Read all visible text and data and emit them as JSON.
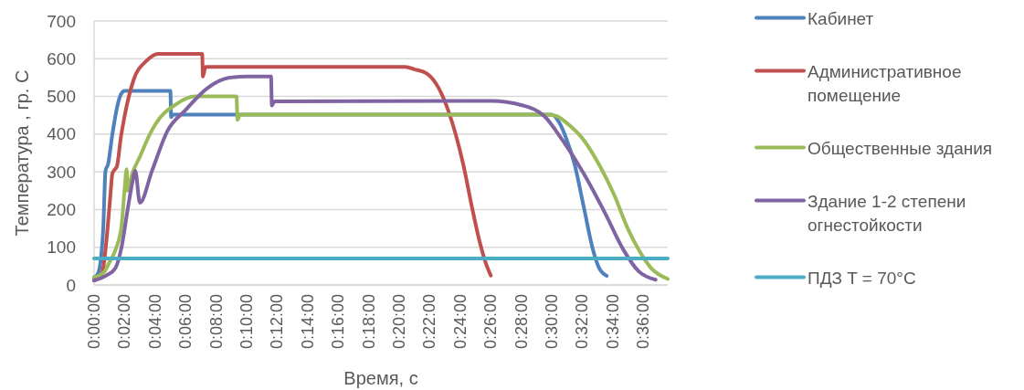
{
  "chart_data": {
    "type": "line",
    "xlabel": "Время, с",
    "ylabel": "Температура , гр. С",
    "xlim": [
      0,
      2256
    ],
    "xticks": [
      {
        "value": 0,
        "label": "0:00:00"
      },
      {
        "value": 120,
        "label": "0:02:00"
      },
      {
        "value": 240,
        "label": "0:04:00"
      },
      {
        "value": 360,
        "label": "0:06:00"
      },
      {
        "value": 480,
        "label": "0:08:00"
      },
      {
        "value": 600,
        "label": "0:10:00"
      },
      {
        "value": 720,
        "label": "0:12:00"
      },
      {
        "value": 840,
        "label": "0:14:00"
      },
      {
        "value": 960,
        "label": "0:16:00"
      },
      {
        "value": 1080,
        "label": "0:18:00"
      },
      {
        "value": 1200,
        "label": "0:20:00"
      },
      {
        "value": 1320,
        "label": "0:22:00"
      },
      {
        "value": 1440,
        "label": "0:24:00"
      },
      {
        "value": 1560,
        "label": "0:26:00"
      },
      {
        "value": 1680,
        "label": "0:28:00"
      },
      {
        "value": 1800,
        "label": "0:30:00"
      },
      {
        "value": 1920,
        "label": "0:32:00"
      },
      {
        "value": 2040,
        "label": "0:34:00"
      },
      {
        "value": 2160,
        "label": "0:36:00"
      }
    ],
    "ylim": [
      0,
      700
    ],
    "yticks": [
      0,
      100,
      200,
      300,
      400,
      500,
      600,
      700
    ],
    "grid": "y",
    "legend": "right",
    "series": [
      {
        "name": "Кабинет",
        "color": "#4f81bd",
        "x": [
          0,
          15,
          25,
          36,
          45,
          55,
          72,
          90,
          105,
          120,
          300,
          303,
          310,
          1800,
          1830,
          1855,
          1890,
          1926,
          1962,
          1986,
          2016
        ],
        "values": [
          20,
          30,
          60,
          150,
          303,
          320,
          400,
          470,
          505,
          515,
          515,
          445,
          452,
          452,
          430,
          392,
          319,
          206,
          93,
          45,
          24
        ]
      },
      {
        "name": "Административное помещение",
        "color": "#c0504d",
        "x": [
          0,
          24,
          36,
          54,
          66,
          72,
          80,
          90,
          105,
          120,
          156,
          204,
          252,
          425,
          428,
          438,
          1224,
          1260,
          1308,
          1356,
          1392,
          1452,
          1488,
          1518,
          1542,
          1560
        ],
        "values": [
          12,
          20,
          45,
          157,
          254,
          296,
          305,
          315,
          390,
          448,
          545,
          593,
          613,
          613,
          553,
          578,
          578,
          572,
          561,
          521,
          464,
          319,
          200,
          110,
          55,
          25
        ]
      },
      {
        "name": "Общественные здания",
        "color": "#9bbb59",
        "x": [
          0,
          40,
          60,
          84,
          108,
          120,
          128,
          132,
          150,
          180,
          216,
          240,
          324,
          396,
          560,
          564,
          574,
          1782,
          1820,
          1854,
          1926,
          1986,
          2046,
          2094,
          2142,
          2190,
          2256
        ],
        "values": [
          20,
          35,
          60,
          93,
          157,
          254,
          307,
          250,
          295,
          340,
          395,
          425,
          480,
          500,
          500,
          438,
          452,
          452,
          448,
          432,
          384,
          319,
          238,
          157,
          93,
          45,
          16
        ]
      },
      {
        "name": "Здание 1-2 степени огнестойкости",
        "color": "#8064a2",
        "x": [
          0,
          48,
          84,
          108,
          132,
          150,
          162,
          180,
          228,
          288,
          360,
          444,
          528,
          600,
          696,
          699,
          710,
          1560,
          1686,
          1770,
          1842,
          1926,
          2010,
          2082,
          2142,
          2208
        ],
        "values": [
          12,
          25,
          45,
          100,
          200,
          270,
          303,
          218,
          303,
          408,
          464,
          521,
          549,
          553,
          553,
          476,
          487,
          488,
          476,
          448,
          384,
          295,
          190,
          93,
          36,
          14
        ]
      },
      {
        "name": "ПДЗ T = 70°C",
        "color": "#4bacc6",
        "x": [
          0,
          2256
        ],
        "values": [
          70,
          70
        ]
      }
    ]
  }
}
